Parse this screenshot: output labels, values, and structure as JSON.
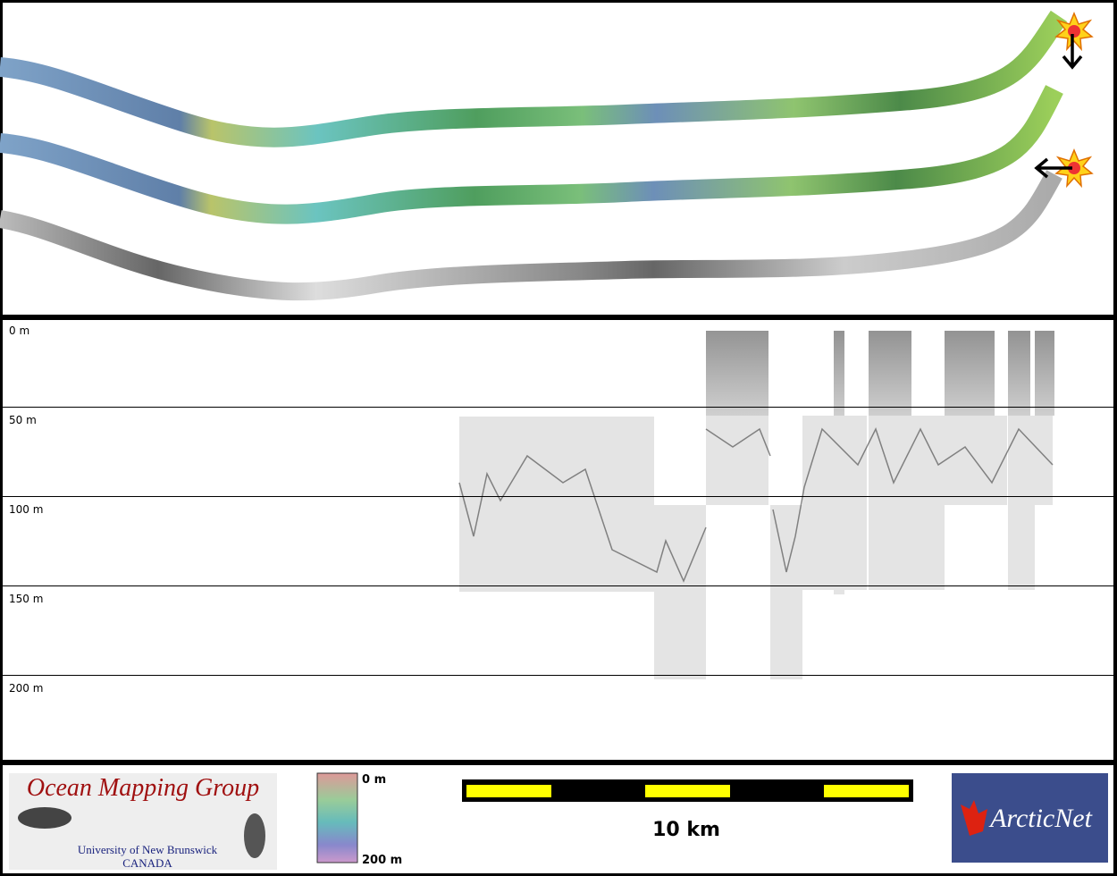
{
  "depth_axis": {
    "labels": [
      "0 m",
      "50 m",
      "100 m",
      "150 m",
      "200 m"
    ]
  },
  "logo": {
    "title": "Ocean Mapping Group",
    "university": "University of New Brunswick",
    "country": "CANADA"
  },
  "color_scale": {
    "top": "0 m",
    "bottom": "200 m"
  },
  "scale_bar": {
    "label": "10 km"
  },
  "partner_logo": {
    "text": "ArcticNet"
  }
}
